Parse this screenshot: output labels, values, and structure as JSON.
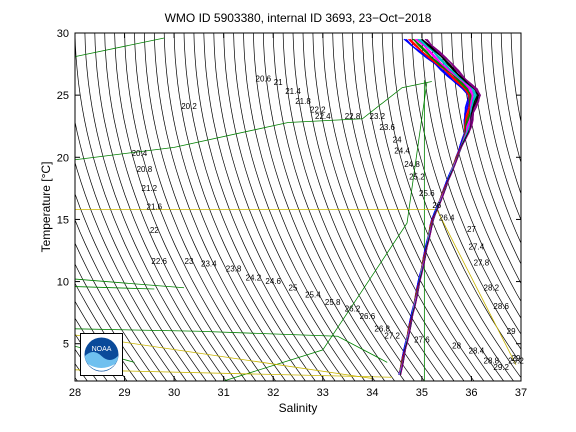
{
  "chart_data": {
    "type": "line",
    "title": "WMO ID 5903380, internal ID 3693, 23−Oct−2018",
    "xlabel": "Salinity",
    "ylabel": "Temperature [°C]",
    "xlim": [
      28,
      37
    ],
    "ylim": [
      2,
      30
    ],
    "xticks": [
      28,
      29,
      30,
      31,
      32,
      33,
      34,
      35,
      36,
      37
    ],
    "yticks": [
      5,
      10,
      15,
      20,
      25,
      30
    ],
    "grid": false,
    "isopycnal_labels": [
      {
        "text": "20.2",
        "s": 30.3,
        "t": 23.9
      },
      {
        "text": "20.6",
        "s": 31.8,
        "t": 26.1
      },
      {
        "text": "21",
        "s": 32.1,
        "t": 25.8
      },
      {
        "text": "21.4",
        "s": 32.4,
        "t": 25.1
      },
      {
        "text": "21.8",
        "s": 32.6,
        "t": 24.3
      },
      {
        "text": "22.2",
        "s": 32.9,
        "t": 23.6
      },
      {
        "text": "22.4",
        "s": 33.0,
        "t": 23.1
      },
      {
        "text": "22.8",
        "s": 33.6,
        "t": 23.1
      },
      {
        "text": "23.2",
        "s": 34.1,
        "t": 23.1
      },
      {
        "text": "23.6",
        "s": 34.3,
        "t": 22.2
      },
      {
        "text": "24",
        "s": 34.5,
        "t": 21.2
      },
      {
        "text": "24.4",
        "s": 34.6,
        "t": 20.3
      },
      {
        "text": "24.8",
        "s": 34.8,
        "t": 19.2
      },
      {
        "text": "25.2",
        "s": 34.9,
        "t": 18.2
      },
      {
        "text": "25.6",
        "s": 35.1,
        "t": 16.9
      },
      {
        "text": "26",
        "s": 35.3,
        "t": 15.9
      },
      {
        "text": "26.4",
        "s": 35.5,
        "t": 14.9
      },
      {
        "text": "20.4",
        "s": 29.3,
        "t": 20.1
      },
      {
        "text": "20.8",
        "s": 29.4,
        "t": 18.8
      },
      {
        "text": "21.2",
        "s": 29.5,
        "t": 17.3
      },
      {
        "text": "21.6",
        "s": 29.6,
        "t": 15.8
      },
      {
        "text": "22",
        "s": 29.6,
        "t": 13.9
      },
      {
        "text": "22.6",
        "s": 29.7,
        "t": 11.4
      },
      {
        "text": "23",
        "s": 30.3,
        "t": 11.4
      },
      {
        "text": "23.4",
        "s": 30.7,
        "t": 11.2
      },
      {
        "text": "23.8",
        "s": 31.2,
        "t": 10.8
      },
      {
        "text": "24.2",
        "s": 31.6,
        "t": 10.1
      },
      {
        "text": "24.6",
        "s": 32.0,
        "t": 9.8
      },
      {
        "text": "25",
        "s": 32.4,
        "t": 9.3
      },
      {
        "text": "25.4",
        "s": 32.8,
        "t": 8.7
      },
      {
        "text": "25.8",
        "s": 33.2,
        "t": 8.1
      },
      {
        "text": "26.2",
        "s": 33.6,
        "t": 7.6
      },
      {
        "text": "26.6",
        "s": 33.9,
        "t": 7.0
      },
      {
        "text": "26.8",
        "s": 34.2,
        "t": 6.0
      },
      {
        "text": "27.2",
        "s": 34.4,
        "t": 5.4
      },
      {
        "text": "27.6",
        "s": 35.0,
        "t": 5.1
      },
      {
        "text": "28",
        "s": 35.7,
        "t": 4.6
      },
      {
        "text": "28.4",
        "s": 36.1,
        "t": 4.2
      },
      {
        "text": "28.8",
        "s": 36.4,
        "t": 3.4
      },
      {
        "text": "29.2",
        "s": 36.6,
        "t": 2.9
      },
      {
        "text": "27",
        "s": 36.0,
        "t": 14.0
      },
      {
        "text": "27.4",
        "s": 36.1,
        "t": 12.6
      },
      {
        "text": "27.8",
        "s": 36.2,
        "t": 11.3
      },
      {
        "text": "28.2",
        "s": 36.4,
        "t": 9.3
      },
      {
        "text": "28.6",
        "s": 36.6,
        "t": 7.8
      },
      {
        "text": "29",
        "s": 36.8,
        "t": 5.8
      },
      {
        "text": "29.2",
        "s": 36.9,
        "t": 3.4
      },
      {
        "text": "29",
        "s": 36.9,
        "t": 3.6
      }
    ],
    "profile_envelope": {
      "deep": {
        "s": 34.55,
        "t": 2.5
      },
      "mid": {
        "s": 35.2,
        "t": 14.8
      },
      "warm_knee": {
        "s": 35.9,
        "t": 22
      },
      "salinity_max": {
        "s": 36.05,
        "t": 25.2
      },
      "surface_fresh": {
        "s": 34.5,
        "t": 29.6
      },
      "surface_salty": {
        "s": 35.2,
        "t": 29.4
      }
    },
    "colors": {
      "isopycnal": "#000000",
      "green_lines": "#008000",
      "yellow_lines": "#c8b400",
      "profile_colors": [
        "#0000ff",
        "#ff0000",
        "#008000",
        "#ff00ff",
        "#00bfbf",
        "#000000",
        "#800080"
      ]
    }
  },
  "logo": {
    "text": "NOAA",
    "icon": "noaa-logo"
  }
}
